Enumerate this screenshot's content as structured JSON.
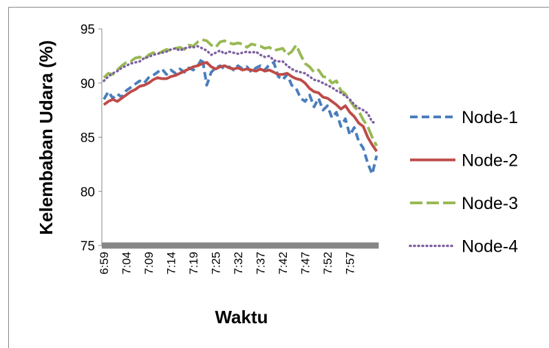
{
  "chart_data": {
    "type": "line",
    "y_label": "Kelembaban Udara (%)",
    "x_label": "Waktu",
    "categories": [
      "6:59",
      null,
      null,
      null,
      null,
      "7:04",
      null,
      null,
      null,
      null,
      "7:09",
      null,
      null,
      null,
      null,
      "7:14",
      null,
      null,
      null,
      null,
      "7:19",
      null,
      null,
      null,
      null,
      "7:25",
      null,
      null,
      null,
      null,
      "7:32",
      null,
      null,
      null,
      null,
      "7:37",
      null,
      null,
      null,
      null,
      "7:42",
      null,
      null,
      null,
      null,
      "7:47",
      null,
      null,
      null,
      null,
      "7:52",
      null,
      null,
      null,
      null,
      "7:57",
      null,
      null,
      null,
      null,
      null,
      null
    ],
    "ylim": [
      75,
      95
    ],
    "yticks": [
      75,
      80,
      85,
      90,
      95
    ],
    "grid": false,
    "legend": "right",
    "series": [
      {
        "name": "Node-1",
        "color": "#4a7ebb",
        "line_style": "dashed",
        "values": [
          88.5,
          89.2,
          88.6,
          89.0,
          88.7,
          89.3,
          89.6,
          89.9,
          90.2,
          90.0,
          90.5,
          90.7,
          91.0,
          91.3,
          90.8,
          91.2,
          90.9,
          91.3,
          91.0,
          91.4,
          91.2,
          91.6,
          92.3,
          89.8,
          91.0,
          91.4,
          91.6,
          91.3,
          91.5,
          91.2,
          91.6,
          91.3,
          91.5,
          91.0,
          91.4,
          91.6,
          91.2,
          91.7,
          91.9,
          90.6,
          90.3,
          90.8,
          89.8,
          89.5,
          88.6,
          88.3,
          88.9,
          87.8,
          88.6,
          87.5,
          87.9,
          86.8,
          87.3,
          86.0,
          86.7,
          85.2,
          85.9,
          84.6,
          84.0,
          82.6,
          81.6,
          83.3
        ]
      },
      {
        "name": "Node-2",
        "color": "#be4b48",
        "line_style": "solid",
        "values": [
          88.0,
          88.3,
          88.5,
          88.3,
          88.6,
          88.9,
          89.2,
          89.4,
          89.7,
          89.8,
          90.0,
          90.3,
          90.5,
          90.4,
          90.4,
          90.6,
          90.7,
          90.9,
          91.1,
          91.3,
          91.5,
          91.6,
          91.8,
          91.9,
          91.5,
          91.3,
          91.5,
          91.6,
          91.4,
          91.3,
          91.4,
          91.2,
          91.3,
          91.2,
          91.1,
          91.3,
          91.1,
          91.2,
          91.0,
          90.8,
          90.8,
          90.9,
          90.6,
          90.4,
          90.3,
          90.0,
          89.5,
          89.2,
          89.1,
          88.7,
          88.6,
          88.3,
          88.0,
          87.6,
          87.9,
          87.3,
          86.9,
          86.3,
          86.0,
          85.0,
          84.3,
          83.7
        ]
      },
      {
        "name": "Node-3",
        "color": "#98b954",
        "line_style": "long-dashed",
        "values": [
          90.5,
          90.9,
          90.8,
          91.2,
          91.6,
          91.9,
          92.0,
          92.3,
          92.4,
          92.2,
          92.6,
          92.8,
          92.7,
          92.9,
          93.1,
          93.0,
          93.2,
          93.3,
          93.1,
          93.5,
          93.4,
          93.8,
          94.0,
          93.9,
          93.5,
          93.3,
          93.8,
          93.9,
          93.7,
          93.6,
          93.7,
          93.6,
          93.3,
          93.6,
          93.5,
          93.4,
          93.2,
          93.3,
          93.0,
          93.1,
          93.2,
          92.6,
          92.9,
          93.5,
          92.6,
          91.8,
          91.5,
          91.0,
          91.2,
          90.6,
          90.5,
          90.0,
          90.2,
          89.3,
          89.0,
          88.4,
          87.8,
          87.4,
          86.6,
          86.0,
          85.0,
          84.2
        ]
      },
      {
        "name": "Node-4",
        "color": "#7d60a0",
        "line_style": "dotted",
        "values": [
          90.2,
          90.6,
          90.9,
          91.1,
          91.4,
          91.6,
          91.8,
          91.9,
          92.0,
          92.3,
          92.4,
          92.6,
          92.7,
          92.8,
          92.9,
          93.1,
          93.2,
          93.0,
          93.2,
          93.3,
          93.3,
          93.4,
          93.2,
          93.0,
          92.6,
          92.8,
          93.0,
          92.7,
          92.9,
          92.8,
          92.7,
          92.8,
          92.9,
          92.8,
          92.9,
          92.6,
          92.4,
          92.5,
          92.1,
          92.0,
          92.0,
          91.6,
          91.3,
          91.1,
          91.0,
          90.9,
          90.6,
          90.3,
          90.2,
          90.0,
          89.8,
          89.6,
          89.3,
          89.1,
          88.8,
          88.5,
          88.0,
          87.7,
          87.5,
          87.2,
          86.4,
          86.3
        ]
      }
    ]
  }
}
